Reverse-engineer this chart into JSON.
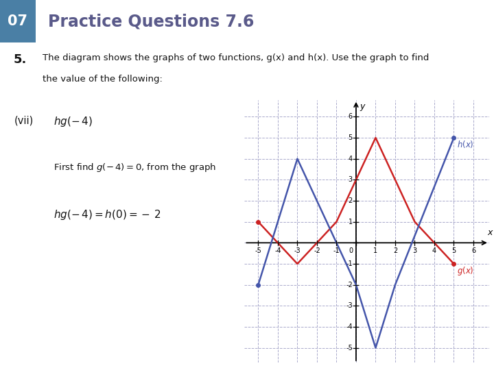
{
  "header_box_color": "#4a7fa5",
  "header_box_text": "07",
  "header_title": "Practice Questions 7.6",
  "header_title_color": "#5a5a8a",
  "question_bg_color": "#dcdce8",
  "question_number": "5.",
  "question_text_line1": "The diagram shows the graphs of two functions, g(x) and h(x). Use the graph to find",
  "question_text_line2": "the value of the following:",
  "subpart_label": "(vii)",
  "subpart_expr": "hg(− 4)",
  "step1_text": "First find g(− 4) = 0, from the graph",
  "step2_text": "hg(− 4) = h(0) = – 2",
  "g_color": "#cc2222",
  "h_color": "#4455aa",
  "g_x": [
    -5,
    -4,
    -3,
    -1,
    1,
    3,
    5
  ],
  "g_y": [
    1,
    0,
    -1,
    1,
    5,
    1,
    -1
  ],
  "h_x": [
    -5,
    -3,
    0,
    1,
    2,
    5
  ],
  "h_y": [
    -2,
    4,
    -2,
    -5,
    -2,
    5
  ],
  "xlim": [
    -5.7,
    6.8
  ],
  "ylim": [
    -5.7,
    6.8
  ],
  "xticks": [
    -5,
    -4,
    -3,
    -2,
    -1,
    0,
    1,
    2,
    3,
    4,
    5,
    6
  ],
  "yticks": [
    -5,
    -4,
    -3,
    -2,
    -1,
    1,
    2,
    3,
    4,
    5,
    6
  ]
}
